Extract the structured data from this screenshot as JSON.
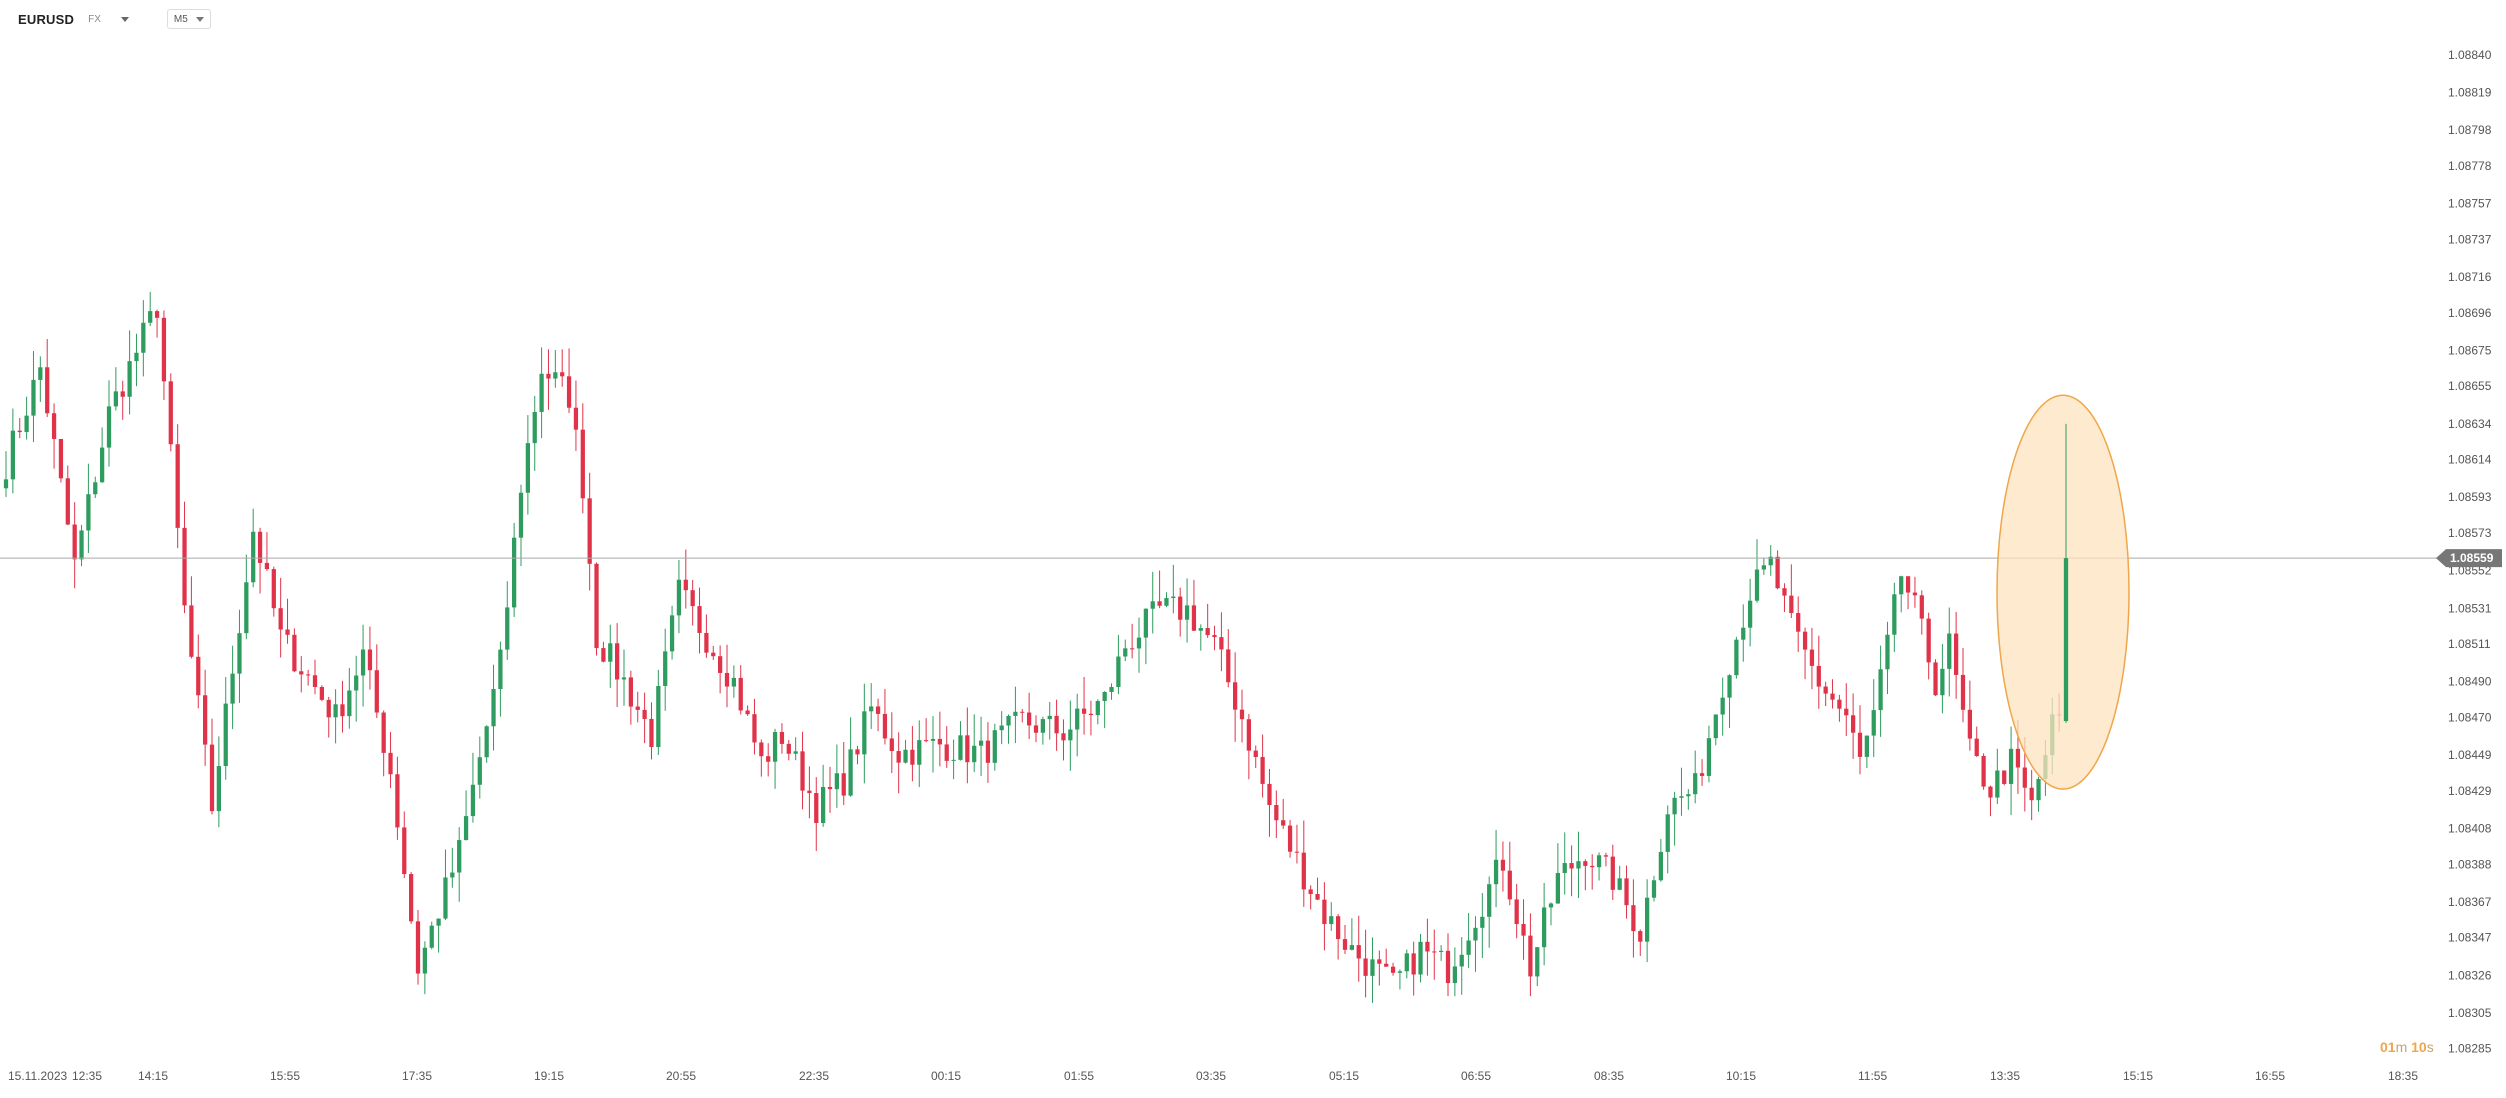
{
  "header": {
    "symbol": "EURUSD",
    "symbol_suffix": "FX",
    "timeframe": "M5"
  },
  "countdown": {
    "minutes": "01",
    "minutes_unit": "m",
    "seconds": "10",
    "seconds_unit": "s"
  },
  "colors": {
    "up": "#2e9c5f",
    "down": "#e0334a",
    "price_line": "#a9a9a9",
    "highlight_fill": "#fde3bf",
    "highlight_stroke": "#f0a64a",
    "countdown": "#f0a64a",
    "axis_text": "#555555"
  },
  "chart_data": {
    "type": "candlestick",
    "instrument": "EURUSD",
    "timeframe": "M5",
    "current_price": "1.08559",
    "y_ticks": [
      "1.08840",
      "1.08819",
      "1.08798",
      "1.08778",
      "1.08757",
      "1.08737",
      "1.08716",
      "1.08696",
      "1.08675",
      "1.08655",
      "1.08634",
      "1.08614",
      "1.08593",
      "1.08573",
      "1.08552",
      "1.08531",
      "1.08511",
      "1.08490",
      "1.08470",
      "1.08449",
      "1.08429",
      "1.08408",
      "1.08388",
      "1.08367",
      "1.08347",
      "1.08326",
      "1.08305",
      "1.08285"
    ],
    "x_labels": [
      "15.11.2023",
      "12:35",
      "14:15",
      "15:55",
      "17:35",
      "19:15",
      "20:55",
      "22:35",
      "00:15",
      "01:55",
      "03:35",
      "05:15",
      "06:55",
      "08:35",
      "10:15",
      "11:55",
      "13:35",
      "15:15",
      "16:55",
      "18:35"
    ],
    "ylim": [
      1.0828,
      1.0885
    ],
    "annotation": {
      "type": "ellipse",
      "description": "highlight of latest bullish candle",
      "price_range": [
        1.0843,
        1.0865
      ]
    },
    "path": [
      [
        1.08612,
        0
      ],
      [
        1.08665,
        5
      ],
      [
        1.08555,
        10
      ],
      [
        1.0864,
        15
      ],
      [
        1.087,
        22
      ],
      [
        1.0853,
        26
      ],
      [
        1.0842,
        30
      ],
      [
        1.08575,
        36
      ],
      [
        1.08515,
        40
      ],
      [
        1.0847,
        48
      ],
      [
        1.08505,
        52
      ],
      [
        1.0844,
        56
      ],
      [
        1.0833,
        60
      ],
      [
        1.08395,
        66
      ],
      [
        1.085,
        72
      ],
      [
        1.086,
        75
      ],
      [
        1.08665,
        78
      ],
      [
        1.0865,
        82
      ],
      [
        1.086,
        84
      ],
      [
        1.08515,
        86
      ],
      [
        1.0849,
        90
      ],
      [
        1.0846,
        94
      ],
      [
        1.0854,
        98
      ],
      [
        1.08515,
        102
      ],
      [
        1.0849,
        106
      ],
      [
        1.08445,
        110
      ],
      [
        1.0846,
        113
      ],
      [
        1.0842,
        118
      ],
      [
        1.08435,
        122
      ],
      [
        1.08475,
        126
      ],
      [
        1.0845,
        130
      ],
      [
        1.08455,
        136
      ],
      [
        1.0845,
        142
      ],
      [
        1.08468,
        148
      ],
      [
        1.08462,
        154
      ],
      [
        1.0848,
        160
      ],
      [
        1.0851,
        163
      ],
      [
        1.0853,
        168
      ],
      [
        1.0853,
        172
      ],
      [
        1.0851,
        176
      ],
      [
        1.0847,
        180
      ],
      [
        1.0842,
        184
      ],
      [
        1.0839,
        188
      ],
      [
        1.0836,
        192
      ],
      [
        1.0834,
        196
      ],
      [
        1.0832,
        202
      ],
      [
        1.0834,
        206
      ],
      [
        1.0833,
        210
      ],
      [
        1.0836,
        214
      ],
      [
        1.0839,
        218
      ],
      [
        1.0833,
        222
      ],
      [
        1.0838,
        226
      ],
      [
        1.08395,
        230
      ],
      [
        1.0838,
        234
      ],
      [
        1.0835,
        238
      ],
      [
        1.0842,
        242
      ],
      [
        1.0843,
        246
      ],
      [
        1.0849,
        250
      ],
      [
        1.0854,
        254
      ],
      [
        1.08555,
        257
      ],
      [
        1.0852,
        260
      ],
      [
        1.0849,
        264
      ],
      [
        1.0847,
        268
      ],
      [
        1.08445,
        270
      ],
      [
        1.0847,
        272
      ],
      [
        1.0851,
        274
      ],
      [
        1.0855,
        276
      ],
      [
        1.0853,
        278
      ],
      [
        1.0849,
        281
      ],
      [
        1.0851,
        283
      ],
      [
        1.0845,
        286
      ],
      [
        1.0843,
        289
      ],
      [
        1.08445,
        292
      ],
      [
        1.0842,
        295
      ],
      [
        1.08465,
        298
      ],
      [
        1.0847,
        299
      ],
      [
        1.08559,
        300
      ]
    ]
  }
}
